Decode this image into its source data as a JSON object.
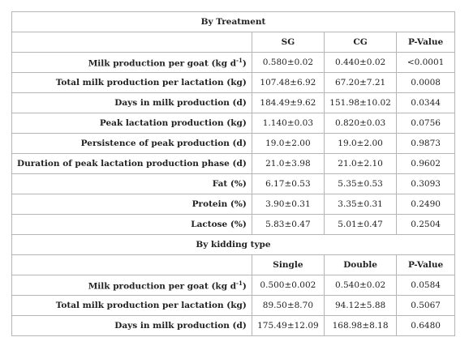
{
  "sections": [
    {
      "title": "By Treatment",
      "header": [
        "SG",
        "CG",
        "P-Value"
      ],
      "rows": [
        {
          "label": "Milk production per goat (kg d",
          "label_sup": "-1",
          "label_end": ")",
          "values": [
            "0.580±0.02",
            "0.440±0.02",
            "<0.0001"
          ]
        },
        {
          "label": "Total milk production per lactation (kg)",
          "values": [
            "107.48±6.92",
            "67.20±7.21",
            "0.0008"
          ]
        },
        {
          "label": "Days in milk production (d)",
          "values": [
            "184.49±9.62",
            "151.98±10.02",
            "0.0344"
          ]
        },
        {
          "label": "Peak lactation production (kg)",
          "values": [
            "1.140±0.03",
            "0.820±0.03",
            "0.0756"
          ]
        },
        {
          "label": "Persistence of peak production (d)",
          "values": [
            "19.0±2.00",
            "19.0±2.00",
            "0.9873"
          ]
        },
        {
          "label": "Duration of peak lactation production phase (d)",
          "values": [
            "21.0±3.98",
            "21.0±2.10",
            "0.9602"
          ]
        },
        {
          "label": "Fat (%)",
          "values": [
            "6.17±0.53",
            "5.35±0.53",
            "0.3093"
          ]
        },
        {
          "label": "Protein (%)",
          "values": [
            "3.90±0.31",
            "3.35±0.31",
            "0.2490"
          ]
        },
        {
          "label": "Lactose (%)",
          "values": [
            "5.83±0.47",
            "5.01±0.47",
            "0.2504"
          ]
        }
      ]
    },
    {
      "title": "By kidding type",
      "header": [
        "Single",
        "Double",
        "P-Value"
      ],
      "rows": [
        {
          "label": "Milk production per goat (kg d",
          "label_sup": "-1",
          "label_end": ")",
          "values": [
            "0.500±0.002",
            "0.540±0.02",
            "0.0584"
          ]
        },
        {
          "label": "Total milk production per lactation (kg)",
          "values": [
            "89.50±8.70",
            "94.12±5.88",
            "0.5067"
          ]
        },
        {
          "label": "Days in milk production (d)",
          "values": [
            "175.49±12.09",
            "168.98±8.18",
            "0.6480"
          ]
        }
      ]
    }
  ]
}
